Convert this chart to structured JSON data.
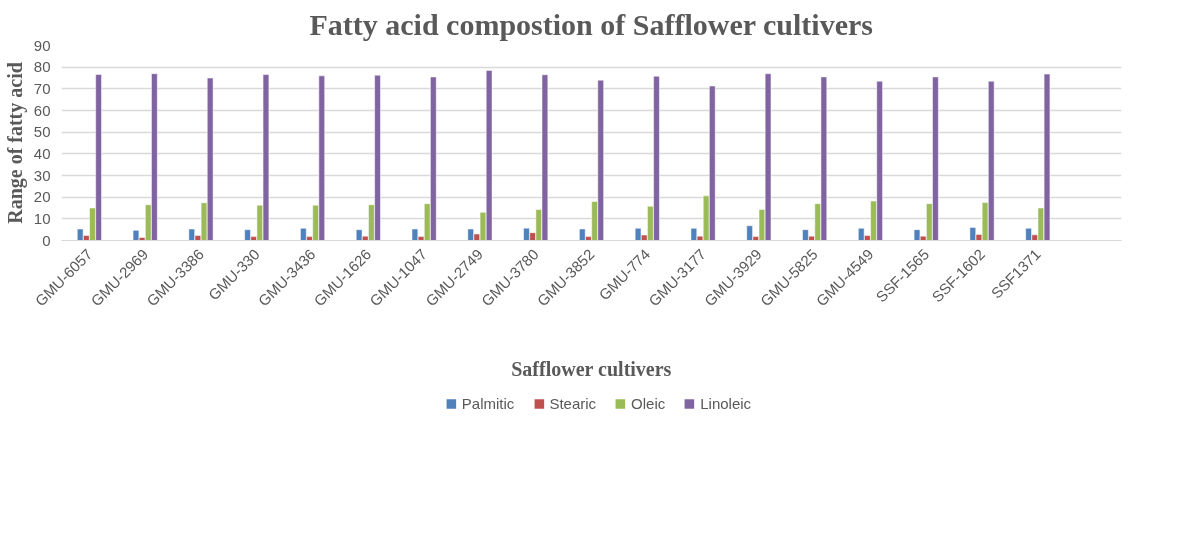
{
  "chart_data": {
    "type": "bar",
    "title": "Fatty acid compostion of Safflower cultivers",
    "xlabel": "Safflower cultivers",
    "ylabel": "Range of fatty acid",
    "categories": [
      "GMU-6057",
      "GMU-2969",
      "GMU-3386",
      "GMU-330",
      "GMU-3436",
      "GMU-1626",
      "GMU-1047",
      "GMU-2749",
      "GMU-3780",
      "GMU-3852",
      "GMU-774",
      "GMU-3177",
      "GMU-3929",
      "GMU-5825",
      "GMU-4549",
      "SSF-1565",
      "SSF-1602",
      "SSF1371",
      null
    ],
    "series": [
      {
        "name": "Palmitic",
        "color": "#4f81bd",
        "values": [
          5.3,
          4.7,
          5.3,
          5,
          5.6,
          5,
          5.3,
          5.3,
          5.7,
          5.3,
          5.6,
          5.6,
          6.8,
          5,
          5.6,
          5,
          6,
          5.6,
          null
        ]
      },
      {
        "name": "Stearic",
        "color": "#c0504d",
        "values": [
          2.3,
          1.4,
          2.3,
          1.8,
          1.8,
          2,
          1.8,
          3,
          3.6,
          1.8,
          2.5,
          2,
          1.8,
          2,
          2.3,
          2,
          2.8,
          2.6,
          null
        ]
      },
      {
        "name": "Oleic",
        "color": "#9bbb59",
        "values": [
          15,
          16.5,
          17.4,
          16.3,
          16.3,
          16.5,
          17,
          13,
          14.3,
          18,
          15.8,
          20.6,
          14.3,
          17,
          18.2,
          17,
          17.5,
          15,
          null
        ]
      },
      {
        "name": "Linoleic",
        "color": "#8064a2",
        "values": [
          76.6,
          77,
          75,
          76.6,
          76,
          76.3,
          75.5,
          78.5,
          76.5,
          74,
          75.8,
          71.3,
          77,
          75.5,
          73.5,
          75.5,
          73.5,
          76.8,
          null
        ]
      }
    ],
    "ylim": [
      0,
      90
    ],
    "yticks": [
      0,
      10,
      20,
      30,
      40,
      50,
      60,
      70,
      80,
      90
    ],
    "grid": "y",
    "legend": "bottom"
  }
}
